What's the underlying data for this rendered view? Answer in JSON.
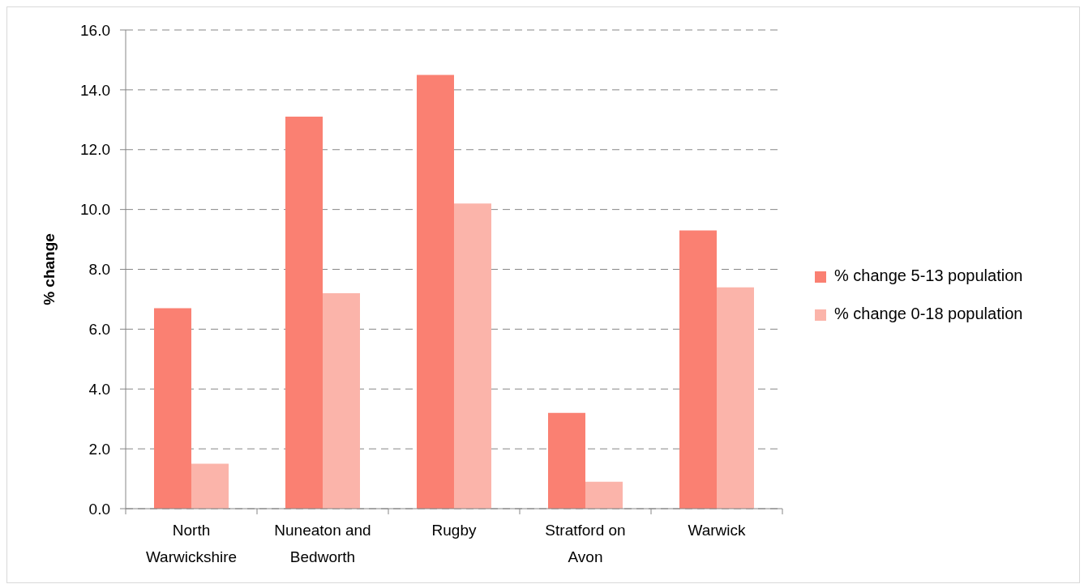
{
  "chart_data": {
    "type": "bar",
    "ylabel": "% change",
    "categories": [
      "North Warwickshire",
      "Nuneaton and Bedworth",
      "Rugby",
      "Stratford on Avon",
      "Warwick"
    ],
    "series": [
      {
        "name": "% change 5-13 population",
        "color": "#fa8072",
        "values": [
          6.7,
          13.1,
          14.5,
          3.2,
          9.3
        ]
      },
      {
        "name": "% change 0-18 population",
        "color": "#fbb4aa",
        "values": [
          1.5,
          7.2,
          10.2,
          0.9,
          7.4
        ]
      }
    ],
    "ylim": [
      0,
      16
    ],
    "yticks": [
      {
        "value": 0,
        "label": "0.0"
      },
      {
        "value": 2,
        "label": "2.0"
      },
      {
        "value": 4,
        "label": "4.0"
      },
      {
        "value": 6,
        "label": "6.0"
      },
      {
        "value": 8,
        "label": "8.0"
      },
      {
        "value": 10,
        "label": "10.0"
      },
      {
        "value": 12,
        "label": "12.0"
      },
      {
        "value": 14,
        "label": "14.0"
      },
      {
        "value": 16,
        "label": "16.0"
      }
    ],
    "grid": "y",
    "legend": "right"
  }
}
